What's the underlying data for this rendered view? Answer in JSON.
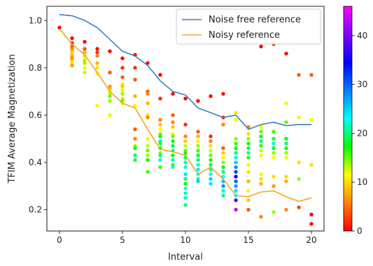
{
  "chart_data": {
    "type": "scatter",
    "xlabel": "Interval",
    "ylabel": "TFIM Average Magnetization",
    "xlim": [
      -1,
      21
    ],
    "ylim": [
      0.11,
      1.06
    ],
    "x_ticks": [
      0,
      5,
      10,
      15,
      20
    ],
    "y_ticks": [
      0.2,
      0.4,
      0.6,
      0.8,
      1.0
    ],
    "x_tick_labels": [
      "0",
      "5",
      "10",
      "15",
      "20"
    ],
    "y_tick_labels": [
      "0.2",
      "0.4",
      "0.6",
      "0.8",
      "1.0"
    ],
    "grid": false,
    "legend": {
      "placement": "upper-right",
      "entries": [
        "Noise free reference",
        "Noisy reference"
      ]
    },
    "series": [
      {
        "name": "Noise free reference",
        "kind": "line",
        "color": "#3d7fc1",
        "x": [
          0,
          1,
          2,
          3,
          4,
          5,
          6,
          7,
          8,
          9,
          10,
          11,
          12,
          13,
          14,
          15,
          16,
          17,
          18,
          19,
          20
        ],
        "y": [
          1.025,
          1.02,
          1.0,
          0.97,
          0.92,
          0.87,
          0.85,
          0.81,
          0.745,
          0.7,
          0.685,
          0.63,
          0.61,
          0.59,
          0.6,
          0.54,
          0.56,
          0.57,
          0.555,
          0.56,
          0.56
        ]
      },
      {
        "name": "Noisy reference",
        "kind": "line",
        "color": "#f7a41d",
        "x": [
          0,
          1,
          2,
          3,
          4,
          5,
          6,
          7,
          8,
          9,
          10,
          11,
          12,
          13,
          14,
          15,
          16,
          17,
          18,
          19,
          20
        ],
        "y": [
          0.965,
          0.9,
          0.855,
          0.78,
          0.7,
          0.65,
          0.63,
          0.54,
          0.455,
          0.445,
          0.43,
          0.35,
          0.38,
          0.33,
          0.26,
          0.255,
          0.275,
          0.28,
          0.255,
          0.235,
          0.25
        ]
      },
      {
        "name": "",
        "kind": "points",
        "colorbar_value": true,
        "points": [
          [
            0,
            0.97,
            0
          ],
          [
            1,
            0.925,
            0
          ],
          [
            1,
            0.905,
            2
          ],
          [
            1,
            0.89,
            4
          ],
          [
            1,
            0.88,
            6
          ],
          [
            1,
            0.87,
            8
          ],
          [
            1,
            0.86,
            10
          ],
          [
            1,
            0.85,
            8
          ],
          [
            1,
            0.84,
            6
          ],
          [
            1,
            0.83,
            9
          ],
          [
            1,
            0.82,
            11
          ],
          [
            1,
            0.81,
            7
          ],
          [
            2,
            0.91,
            0
          ],
          [
            2,
            0.88,
            4
          ],
          [
            2,
            0.865,
            8
          ],
          [
            2,
            0.85,
            10
          ],
          [
            2,
            0.84,
            12
          ],
          [
            2,
            0.83,
            9
          ],
          [
            2,
            0.82,
            14
          ],
          [
            2,
            0.8,
            11
          ],
          [
            2,
            0.78,
            13
          ],
          [
            3,
            0.88,
            0
          ],
          [
            3,
            0.865,
            2
          ],
          [
            3,
            0.85,
            6
          ],
          [
            3,
            0.82,
            8
          ],
          [
            3,
            0.8,
            10
          ],
          [
            3,
            0.775,
            12
          ],
          [
            3,
            0.64,
            11
          ],
          [
            4,
            0.87,
            0
          ],
          [
            4,
            0.78,
            4
          ],
          [
            4,
            0.72,
            6
          ],
          [
            4,
            0.71,
            9
          ],
          [
            4,
            0.7,
            11
          ],
          [
            4,
            0.69,
            13
          ],
          [
            4,
            0.68,
            15
          ],
          [
            4,
            0.66,
            14
          ],
          [
            4,
            0.6,
            12
          ],
          [
            5,
            0.84,
            0
          ],
          [
            5,
            0.8,
            2
          ],
          [
            5,
            0.76,
            4
          ],
          [
            5,
            0.73,
            10
          ],
          [
            5,
            0.72,
            9
          ],
          [
            5,
            0.71,
            12
          ],
          [
            5,
            0.7,
            11
          ],
          [
            5,
            0.69,
            14
          ],
          [
            5,
            0.67,
            10
          ],
          [
            5,
            0.66,
            16
          ],
          [
            5,
            0.65,
            13
          ],
          [
            6,
            0.855,
            0
          ],
          [
            6,
            0.8,
            2
          ],
          [
            6,
            0.75,
            4
          ],
          [
            6,
            0.68,
            8
          ],
          [
            6,
            0.64,
            11
          ],
          [
            6,
            0.54,
            4
          ],
          [
            6,
            0.5,
            6
          ],
          [
            6,
            0.47,
            14
          ],
          [
            6,
            0.46,
            17
          ],
          [
            6,
            0.43,
            20
          ],
          [
            6,
            0.41,
            19
          ],
          [
            7,
            0.82,
            0
          ],
          [
            7,
            0.7,
            4
          ],
          [
            7,
            0.69,
            6
          ],
          [
            7,
            0.65,
            8
          ],
          [
            7,
            0.6,
            10
          ],
          [
            7,
            0.59,
            6
          ],
          [
            7,
            0.5,
            11
          ],
          [
            7,
            0.47,
            13
          ],
          [
            7,
            0.45,
            15
          ],
          [
            7,
            0.43,
            14
          ],
          [
            7,
            0.41,
            17
          ],
          [
            7,
            0.36,
            16
          ],
          [
            8,
            0.77,
            0
          ],
          [
            8,
            0.67,
            2
          ],
          [
            8,
            0.58,
            6
          ],
          [
            8,
            0.56,
            9
          ],
          [
            8,
            0.54,
            12
          ],
          [
            8,
            0.52,
            15
          ],
          [
            8,
            0.51,
            18
          ],
          [
            8,
            0.49,
            21
          ],
          [
            8,
            0.48,
            19
          ],
          [
            8,
            0.46,
            17
          ],
          [
            8,
            0.44,
            14
          ],
          [
            8,
            0.43,
            20
          ],
          [
            8,
            0.41,
            22
          ],
          [
            8,
            0.38,
            16
          ],
          [
            9,
            0.69,
            0
          ],
          [
            9,
            0.6,
            4
          ],
          [
            9,
            0.57,
            6
          ],
          [
            9,
            0.55,
            9
          ],
          [
            9,
            0.52,
            12
          ],
          [
            9,
            0.51,
            15
          ],
          [
            9,
            0.49,
            17
          ],
          [
            9,
            0.47,
            19
          ],
          [
            9,
            0.45,
            20
          ],
          [
            9,
            0.43,
            18
          ],
          [
            9,
            0.41,
            21
          ],
          [
            9,
            0.39,
            16
          ],
          [
            9,
            0.38,
            22
          ],
          [
            10,
            0.67,
            0
          ],
          [
            10,
            0.56,
            2
          ],
          [
            10,
            0.51,
            6
          ],
          [
            10,
            0.49,
            9
          ],
          [
            10,
            0.47,
            13
          ],
          [
            10,
            0.45,
            15
          ],
          [
            10,
            0.44,
            17
          ],
          [
            10,
            0.42,
            19
          ],
          [
            10,
            0.4,
            21
          ],
          [
            10,
            0.38,
            22
          ],
          [
            10,
            0.35,
            24
          ],
          [
            10,
            0.33,
            20
          ],
          [
            10,
            0.31,
            18
          ],
          [
            10,
            0.29,
            23
          ],
          [
            10,
            0.27,
            21
          ],
          [
            10,
            0.25,
            22
          ],
          [
            10,
            0.22,
            20
          ],
          [
            11,
            0.66,
            0
          ],
          [
            11,
            0.53,
            4
          ],
          [
            11,
            0.51,
            8
          ],
          [
            11,
            0.49,
            11
          ],
          [
            11,
            0.47,
            14
          ],
          [
            11,
            0.45,
            16
          ],
          [
            11,
            0.43,
            18
          ],
          [
            11,
            0.41,
            20
          ],
          [
            11,
            0.39,
            22
          ],
          [
            11,
            0.37,
            24
          ],
          [
            11,
            0.35,
            23
          ],
          [
            11,
            0.33,
            21
          ],
          [
            11,
            0.32,
            25
          ],
          [
            12,
            0.68,
            0
          ],
          [
            12,
            0.51,
            2
          ],
          [
            12,
            0.49,
            6
          ],
          [
            12,
            0.47,
            10
          ],
          [
            12,
            0.45,
            13
          ],
          [
            12,
            0.43,
            15
          ],
          [
            12,
            0.41,
            17
          ],
          [
            12,
            0.39,
            19
          ],
          [
            12,
            0.37,
            21
          ],
          [
            12,
            0.35,
            23
          ],
          [
            12,
            0.33,
            25
          ],
          [
            12,
            0.31,
            24
          ],
          [
            13,
            0.69,
            0
          ],
          [
            13,
            0.59,
            2
          ],
          [
            13,
            0.56,
            6
          ],
          [
            13,
            0.46,
            4
          ],
          [
            13,
            0.44,
            9
          ],
          [
            13,
            0.42,
            11
          ],
          [
            13,
            0.4,
            14
          ],
          [
            13,
            0.38,
            17
          ],
          [
            13,
            0.36,
            20
          ],
          [
            13,
            0.34,
            23
          ],
          [
            13,
            0.32,
            26
          ],
          [
            13,
            0.3,
            28
          ],
          [
            13,
            0.28,
            22
          ],
          [
            13,
            0.26,
            20
          ],
          [
            14,
            0.61,
            10
          ],
          [
            14,
            0.58,
            12
          ],
          [
            14,
            0.5,
            14
          ],
          [
            14,
            0.48,
            16
          ],
          [
            14,
            0.46,
            18
          ],
          [
            14,
            0.44,
            20
          ],
          [
            14,
            0.42,
            22
          ],
          [
            14,
            0.4,
            25
          ],
          [
            14,
            0.38,
            28
          ],
          [
            14,
            0.36,
            32
          ],
          [
            14,
            0.34,
            35
          ],
          [
            14,
            0.32,
            30
          ],
          [
            14,
            0.3,
            27
          ],
          [
            14,
            0.28,
            24
          ],
          [
            14,
            0.26,
            22
          ],
          [
            14,
            0.24,
            38
          ],
          [
            14,
            0.2,
            44
          ],
          [
            15,
            0.55,
            6
          ],
          [
            15,
            0.52,
            10
          ],
          [
            15,
            0.5,
            14
          ],
          [
            15,
            0.48,
            17
          ],
          [
            15,
            0.46,
            19
          ],
          [
            15,
            0.44,
            21
          ],
          [
            15,
            0.42,
            16
          ],
          [
            15,
            0.39,
            12
          ],
          [
            15,
            0.36,
            10
          ],
          [
            15,
            0.32,
            8
          ],
          [
            15,
            0.28,
            11
          ],
          [
            15,
            0.24,
            9
          ],
          [
            15,
            0.2,
            4
          ],
          [
            16,
            0.89,
            0
          ],
          [
            16,
            0.55,
            12
          ],
          [
            16,
            0.53,
            15
          ],
          [
            16,
            0.51,
            18
          ],
          [
            16,
            0.49,
            20
          ],
          [
            16,
            0.47,
            16
          ],
          [
            16,
            0.45,
            13
          ],
          [
            16,
            0.43,
            11
          ],
          [
            16,
            0.35,
            12
          ],
          [
            16,
            0.33,
            10
          ],
          [
            16,
            0.31,
            8
          ],
          [
            16,
            0.17,
            6
          ],
          [
            17,
            0.9,
            2
          ],
          [
            17,
            0.53,
            16
          ],
          [
            17,
            0.5,
            19
          ],
          [
            17,
            0.48,
            22
          ],
          [
            17,
            0.46,
            18
          ],
          [
            17,
            0.44,
            14
          ],
          [
            17,
            0.42,
            12
          ],
          [
            17,
            0.34,
            10
          ],
          [
            17,
            0.3,
            7
          ],
          [
            17,
            0.19,
            14
          ],
          [
            18,
            0.86,
            0
          ],
          [
            18,
            0.65,
            12
          ],
          [
            18,
            0.57,
            15
          ],
          [
            18,
            0.5,
            18
          ],
          [
            18,
            0.48,
            20
          ],
          [
            18,
            0.46,
            17
          ],
          [
            18,
            0.44,
            14
          ],
          [
            18,
            0.42,
            12
          ],
          [
            18,
            0.34,
            10
          ],
          [
            18,
            0.32,
            8
          ],
          [
            18,
            0.2,
            6
          ],
          [
            19,
            0.77,
            4
          ],
          [
            19,
            0.59,
            12
          ],
          [
            19,
            0.4,
            10
          ],
          [
            19,
            0.33,
            14
          ],
          [
            19,
            0.21,
            3
          ],
          [
            20,
            0.77,
            4
          ],
          [
            20,
            0.58,
            12
          ],
          [
            20,
            0.39,
            10
          ],
          [
            20,
            0.18,
            0
          ],
          [
            20,
            0.14,
            0
          ]
        ]
      }
    ],
    "colorbar": {
      "range": [
        0,
        46
      ],
      "ticks": [
        0,
        10,
        20,
        30,
        40
      ],
      "tick_labels": [
        "0",
        "10",
        "20",
        "30",
        "40"
      ],
      "colormap": [
        "#ff0000",
        "#ff8000",
        "#ffff00",
        "#00ff00",
        "#00ffff",
        "#0080ff",
        "#0000ff",
        "#8000ff",
        "#ff00ff"
      ]
    }
  }
}
